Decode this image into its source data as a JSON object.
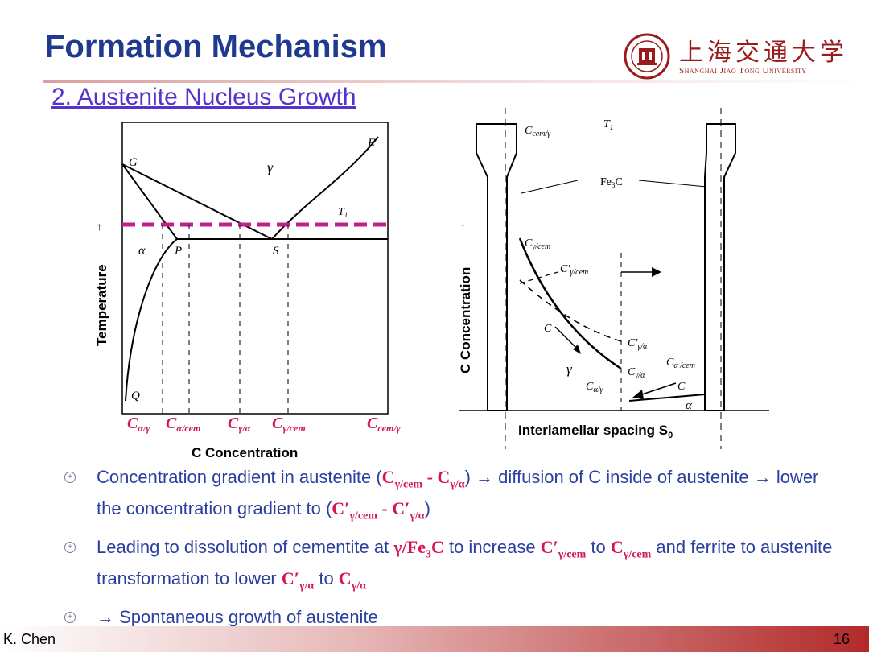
{
  "title": "Formation Mechanism",
  "subtitle": "2. Austenite Nucleus Growth",
  "logo": {
    "cn": "上海交通大学",
    "en": "Shanghai Jiao Tong University"
  },
  "left_figure": {
    "ylabel": "Temperature",
    "arrow": "↑",
    "xlabel": "C Concentration",
    "points": {
      "G": "G",
      "E": "E",
      "P": "P",
      "S": "S",
      "Q": "Q",
      "T1": "T",
      "T1_sub": "1",
      "alpha": "α",
      "gamma": "γ"
    },
    "xticks": [
      {
        "base": "C",
        "sub": "α/γ"
      },
      {
        "base": "C",
        "sub": "α/cem"
      },
      {
        "base": "C",
        "sub": "γ/α"
      },
      {
        "base": "C",
        "sub": "γ/cem"
      },
      {
        "base": "C",
        "sub": "cem/γ"
      }
    ]
  },
  "right_figure": {
    "ylabel": "C Concentration",
    "arrow": "↑",
    "xlabel": "Interlamellar spacing S",
    "xlabel_sub": "0",
    "labels": {
      "c_cem_g": "C",
      "c_cem_g_sub": "cem/γ",
      "t1": "T",
      "t1_sub": "1",
      "fe3c": "Fe",
      "fe3c_sub": "3",
      "fe3c_end": "C",
      "c_g_cem": "C",
      "c_g_cem_sub": "γ/cem",
      "cp_g_cem": "C′",
      "cp_g_cem_sub": "γ/cem",
      "c_mid": "C",
      "cp_g_a": "C′",
      "cp_g_a_sub": "γ/α",
      "c_a_cem": "C",
      "c_a_cem_sub": "α /cem",
      "gamma": "γ",
      "c_g_a": "C",
      "c_g_a_sub": "γ/α",
      "c_a_g": "C",
      "c_a_g_sub": "α/γ",
      "c_right": "C",
      "alpha": "α"
    }
  },
  "bullets": [
    {
      "t1": "Concentration gradient in austenite (",
      "r1": "C",
      "r1s": "γ/cem",
      "m1": " - ",
      "r2": "C",
      "r2s": "γ/α",
      "t2": ") → diffusion of C inside of austenite → lower the concentration gradient to (",
      "r3": "C′",
      "r3s": "γ/cem",
      "m2": " - ",
      "r4": "C′",
      "r4s": "γ/α",
      "t3": ")"
    },
    {
      "t1": "Leading to dissolution of cementite at ",
      "r1": "γ/Fe",
      "r1s": "3",
      "r1e": "C",
      "t2": " to increase ",
      "r2": "C′",
      "r2s": "γ/cem",
      "t3": " to ",
      "r3": "C",
      "r3s": "γ/cem",
      "t4": " and ferrite to austenite transformation to lower ",
      "r4": "C′",
      "r4s": "γ/α",
      "t5": " to ",
      "r5": "C",
      "r5s": "γ/α"
    },
    {
      "t1": "→ Spontaneous growth of austenite"
    }
  ],
  "footer": {
    "author": "K. Chen",
    "page": "16"
  },
  "colors": {
    "title": "#1f3a8f",
    "subtitle": "#5533cc",
    "accent": "#d4145a",
    "bullet_text": "#2a3fa0",
    "dash": "#c0208c"
  }
}
